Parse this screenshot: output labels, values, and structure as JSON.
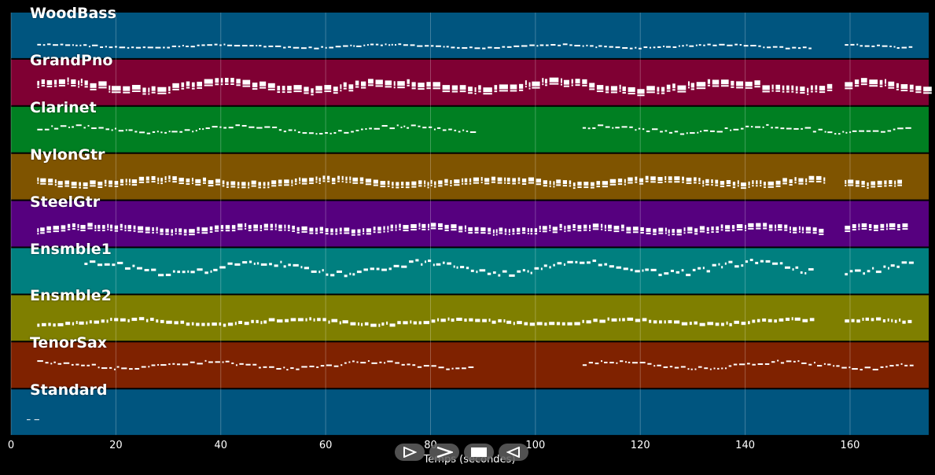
{
  "tracks": [
    {
      "name": "WoodBass",
      "color": "#00557f"
    },
    {
      "name": "GrandPno",
      "color": "#7f0033"
    },
    {
      "name": "Clarinet",
      "color": "#007f22"
    },
    {
      "name": "NylonGtr",
      "color": "#7f5400"
    },
    {
      "name": "SteelGtr",
      "color": "#56007f"
    },
    {
      "name": "Ensmble1",
      "color": "#007f7f"
    },
    {
      "name": "Ensmble2",
      "color": "#7f7f00"
    },
    {
      "name": "TenorSax",
      "color": "#7f2200"
    },
    {
      "name": "Standard",
      "color": "#00557f"
    }
  ],
  "axis": {
    "xlabel": "Temps (secondes)",
    "ticks": [
      "0",
      "20",
      "40",
      "60",
      "80",
      "100",
      "120",
      "140",
      "160"
    ],
    "xlim": [
      0,
      175
    ]
  },
  "controls": [
    {
      "name": "play-icon"
    },
    {
      "name": "forward-icon"
    },
    {
      "name": "stop-icon"
    },
    {
      "name": "rewind-icon"
    }
  ]
}
